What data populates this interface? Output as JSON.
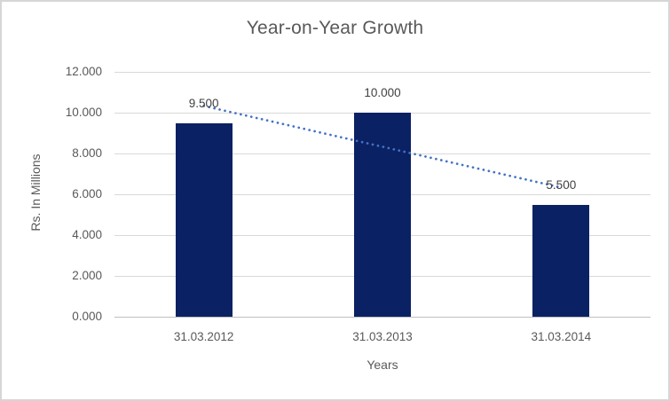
{
  "chart_data": {
    "type": "bar",
    "title": "Year-on-Year Growth",
    "xlabel": "Years",
    "ylabel": "Rs. In Millions",
    "categories": [
      "31.03.2012",
      "31.03.2013",
      "31.03.2014"
    ],
    "values": [
      9.5,
      10.0,
      5.5
    ],
    "value_labels": [
      "9.500",
      "10.000",
      "5.500"
    ],
    "ylim": [
      0,
      12
    ],
    "y_tick_step": 2,
    "y_tick_labels": [
      "0.000",
      "2.000",
      "4.000",
      "6.000",
      "8.000",
      "10.000",
      "12.000"
    ],
    "grid": true,
    "legend": false,
    "trendline": {
      "type": "linear",
      "style": "dotted",
      "start_value": 10.33,
      "end_value": 6.33,
      "spans_categories": [
        0,
        2
      ]
    },
    "colors": {
      "bar": "#0a2163",
      "trendline": "#4472c4",
      "gridline": "#d9d9d9",
      "axis_line": "#bfbfbf",
      "axis_text": "#595959",
      "data_label_text": "#404040",
      "title_text": "#595959",
      "background": "#ffffff",
      "border": "#d6d6d6"
    }
  }
}
